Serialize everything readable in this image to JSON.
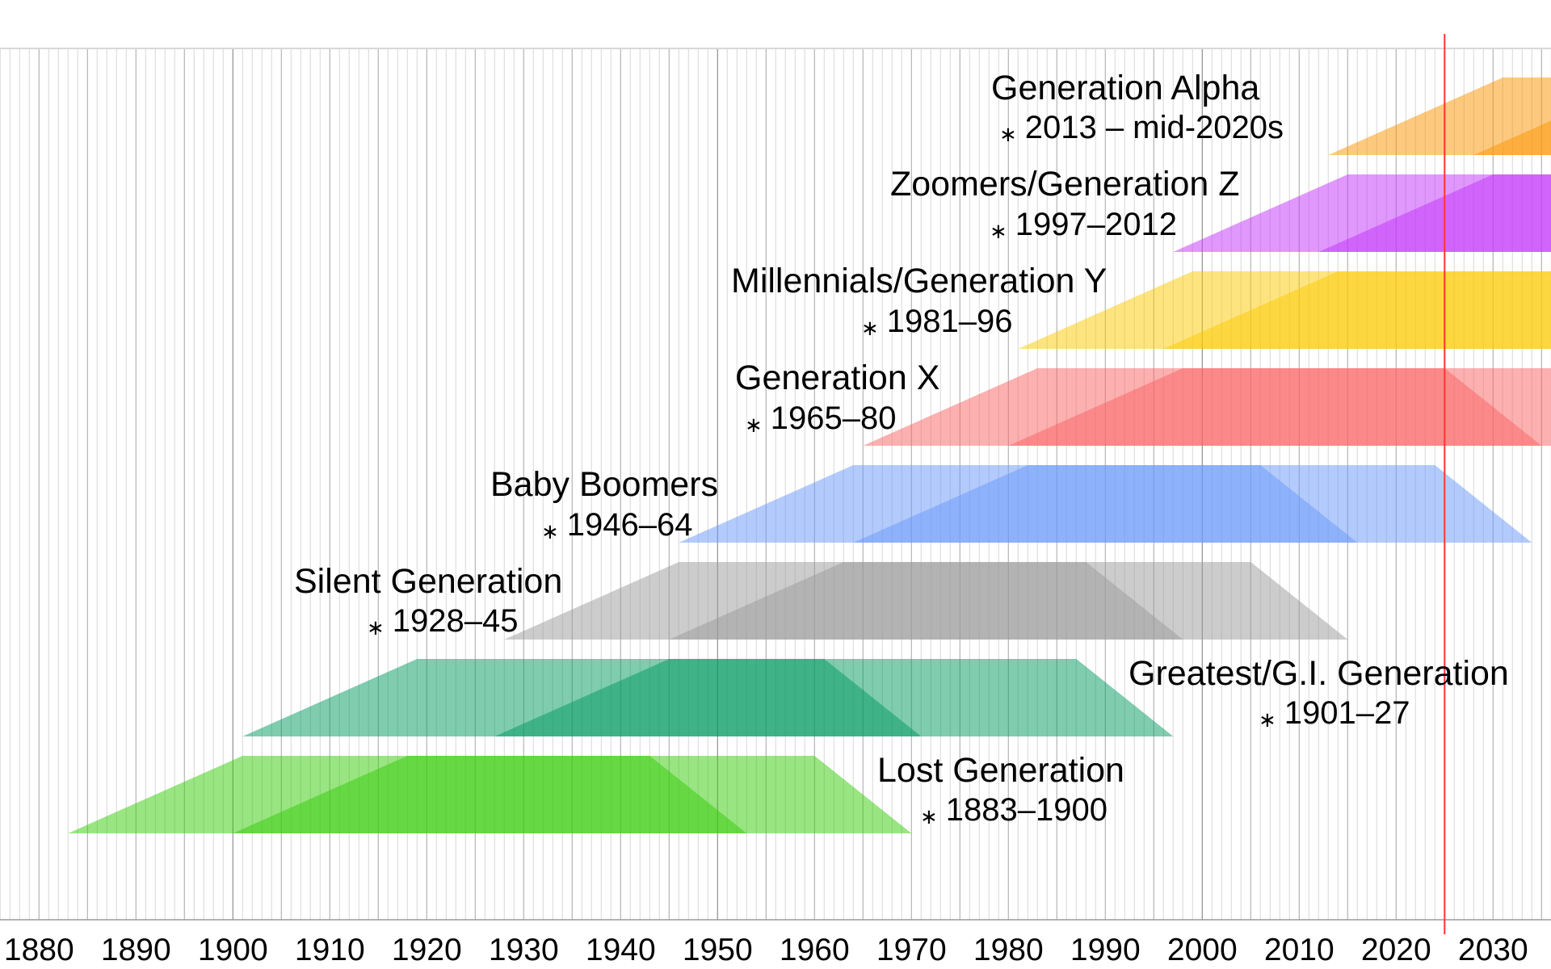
{
  "chart_data": {
    "type": "area",
    "title": "",
    "xlabel": "",
    "ylabel": "",
    "xlim": [
      1876,
      2036
    ],
    "x_ticks": [
      1880,
      1890,
      1900,
      1910,
      1920,
      1930,
      1940,
      1950,
      1960,
      1970,
      1980,
      1990,
      2000,
      2010,
      2020,
      2030
    ],
    "grid": "vertical lines every year, darker every 5 years",
    "current_year_marker": {
      "year": 2025,
      "color": "#FF3333"
    },
    "cohort_shape_ages": [
      0,
      18,
      60,
      70
    ],
    "birth_marker": "∗",
    "generations": [
      {
        "name": "Lost Generation",
        "range_label": "1883–1900",
        "birth_start": 1883,
        "birth_end": 1900,
        "color": "#33CB05"
      },
      {
        "name": "Greatest/G.I. Generation",
        "range_label": "1901–27",
        "birth_start": 1901,
        "birth_end": 1927,
        "color": "#00995F"
      },
      {
        "name": "Silent Generation",
        "range_label": "1928–45",
        "birth_start": 1928,
        "birth_end": 1945,
        "color": "#999999"
      },
      {
        "name": "Baby Boomers",
        "range_label": "1946–64",
        "birth_start": 1946,
        "birth_end": 1964,
        "color": "#6797F9"
      },
      {
        "name": "Generation X",
        "range_label": "1965–80",
        "birth_start": 1965,
        "birth_end": 1980,
        "color": "#F96161"
      },
      {
        "name": "Millennials/Generation Y",
        "range_label": "1981–96",
        "birth_start": 1981,
        "birth_end": 1996,
        "color": "#FBC900"
      },
      {
        "name": "Zoomers/Generation Z",
        "range_label": "1997–2012",
        "birth_start": 1997,
        "birth_end": 2012,
        "color": "#C131F9"
      },
      {
        "name": "Generation Alpha",
        "range_label": "2013 – mid-2020s",
        "birth_start": 2013,
        "birth_end": 2028,
        "color": "#FB9300"
      }
    ]
  }
}
